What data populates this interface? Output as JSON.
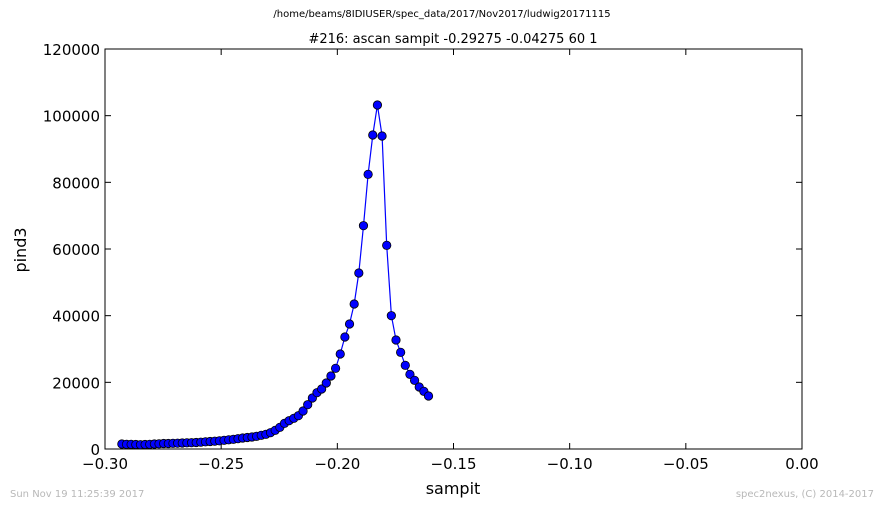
{
  "header": {
    "path": "/home/beams/8IDIUSER/spec_data/2017/Nov2017/ludwig20171115"
  },
  "footer": {
    "timestamp": "Sun Nov 19 11:25:39 2017",
    "credit": "spec2nexus, (C) 2014-2017"
  },
  "chart_data": {
    "type": "line",
    "title": "#216: ascan  sampit -0.29275 -0.04275  60 1",
    "xlabel": "sampit",
    "ylabel": "pind3",
    "xlim": [
      -0.3,
      0.0
    ],
    "ylim": [
      0,
      120000
    ],
    "xticks": [
      "−0.30",
      "−0.25",
      "−0.20",
      "−0.15",
      "−0.10",
      "−0.05",
      "0.00"
    ],
    "yticks": [
      "0",
      "20000",
      "40000",
      "60000",
      "80000",
      "100000",
      "120000"
    ],
    "grid": false,
    "legend": "none",
    "colors": {
      "line": "#0000ff",
      "marker": "#0000ff",
      "marker_edge": "#000000"
    },
    "series": [
      {
        "x": [
          -0.29275,
          -0.29075,
          -0.28875,
          -0.28675,
          -0.28475,
          -0.28275,
          -0.28075,
          -0.27875,
          -0.27675,
          -0.27475,
          -0.27275,
          -0.27075,
          -0.26875,
          -0.26675,
          -0.26475,
          -0.26275,
          -0.26075,
          -0.25875,
          -0.25675,
          -0.25475,
          -0.25275,
          -0.25075,
          -0.24875,
          -0.24675,
          -0.24475,
          -0.24275,
          -0.24075,
          -0.23875,
          -0.23675,
          -0.23475,
          -0.23275,
          -0.23075,
          -0.22875,
          -0.22675,
          -0.22475,
          -0.22275,
          -0.22075,
          -0.21875,
          -0.21675,
          -0.21475,
          -0.21275,
          -0.21075,
          -0.20875,
          -0.20675,
          -0.20475,
          -0.20275,
          -0.20075,
          -0.19875,
          -0.19675,
          -0.19475,
          -0.19275,
          -0.19075,
          -0.18875,
          -0.18675,
          -0.18475,
          -0.18275,
          -0.18075,
          -0.17875,
          -0.17675,
          -0.17475,
          -0.17275
        ],
        "y": [
          1500,
          1400,
          1400,
          1350,
          1300,
          1350,
          1400,
          1500,
          1550,
          1650,
          1650,
          1700,
          1750,
          1800,
          1850,
          1900,
          1950,
          2050,
          2150,
          2250,
          2350,
          2450,
          2600,
          2750,
          2900,
          3100,
          3300,
          3450,
          3600,
          3800,
          4100,
          4400,
          4900,
          5600,
          6500,
          7700,
          8500,
          9200,
          10000,
          11400,
          13300,
          15300,
          16900,
          18000,
          19800,
          21900,
          24200,
          28500,
          33600,
          37500,
          43500,
          52800,
          67000,
          82400,
          94200,
          103200,
          93900,
          61100,
          40000,
          32700,
          29000
        ]
      }
    ],
    "series_tail": {
      "x": [
        -0.17075,
        -0.16875,
        -0.16675,
        -0.16475,
        -0.16275,
        -0.16075
      ],
      "y": [
        25100,
        22400,
        20600,
        18600,
        17300,
        15900
      ]
    }
  }
}
